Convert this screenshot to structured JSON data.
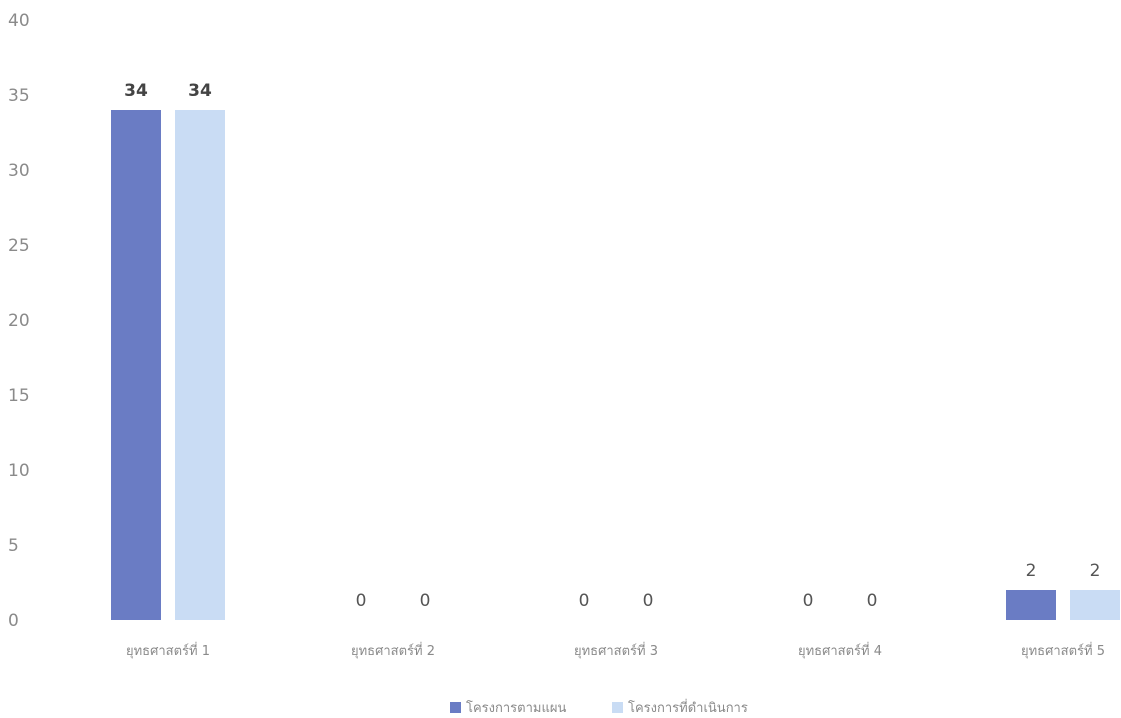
{
  "chart_data": {
    "type": "bar",
    "categories": [
      "ยุทธศาสตร์ที่ 1",
      "ยุทธศาสตร์ที่ 2",
      "ยุทธศาสตร์ที่ 3",
      "ยุทธศาสตร์ที่ 4",
      "ยุทธศาสตร์ที่ 5"
    ],
    "series": [
      {
        "name": "โครงการตามแผน",
        "values": [
          34,
          0,
          0,
          0,
          2
        ],
        "color": "#6a7cc4"
      },
      {
        "name": "โครงการที่ดำเนินการ",
        "values": [
          34,
          0,
          0,
          0,
          2
        ],
        "color": "#c9dcf4"
      }
    ],
    "yticks": [
      "0",
      "5",
      "10",
      "15",
      "20",
      "25",
      "30",
      "35",
      "40"
    ],
    "ylim": [
      0,
      40
    ],
    "data_labels": true,
    "grid": false,
    "legend_position": "bottom",
    "title": "",
    "xlabel": "",
    "ylabel": ""
  }
}
